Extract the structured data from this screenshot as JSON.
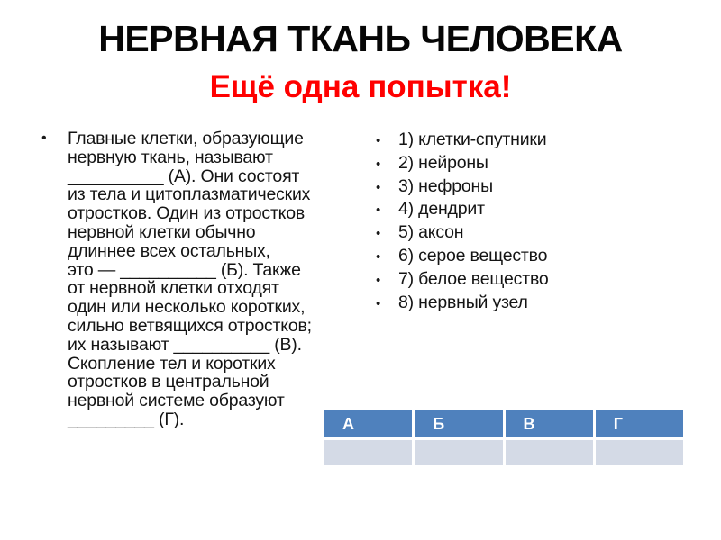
{
  "slide": {
    "title": "НЕРВНАЯ ТКАНЬ ЧЕЛОВЕКА",
    "subtitle": "Ещё одна попытка!",
    "bullet_char": "•",
    "question_text": "Главные клетки, образующие\nнервную ткань, называют\n__________ (А). Они состоят\nиз тела и цитоплазматических\nотростков. Один из отростков\nнервной клетки обычно\nдлиннее всех остальных,\nэто — __________ (Б). Также\nот нервной клетки отходят\nодин или несколько коротких,\nсильно ветвящихся отростков;\nих называют __________ (В).\nСкопление тел и коротких\nотростков в центральной\nнервной системе образуют\n_________ (Г).",
    "options": [
      "1) клетки-спутники",
      "2) нейроны",
      "3) нефроны",
      "4) дендрит",
      "5) аксон",
      "6) серое вещество",
      "7) белое вещество",
      "8) нервный узел"
    ],
    "table": {
      "headers": [
        "А",
        "Б",
        "В",
        "Г"
      ],
      "row": [
        "",
        "",
        "",
        ""
      ]
    },
    "colors": {
      "title_text": "#060606",
      "subtitle_red": "#ff0000",
      "table_header_bg": "#4f81bd",
      "table_header_text": "#ffffff",
      "table_row_bg": "#d4dae6"
    }
  }
}
